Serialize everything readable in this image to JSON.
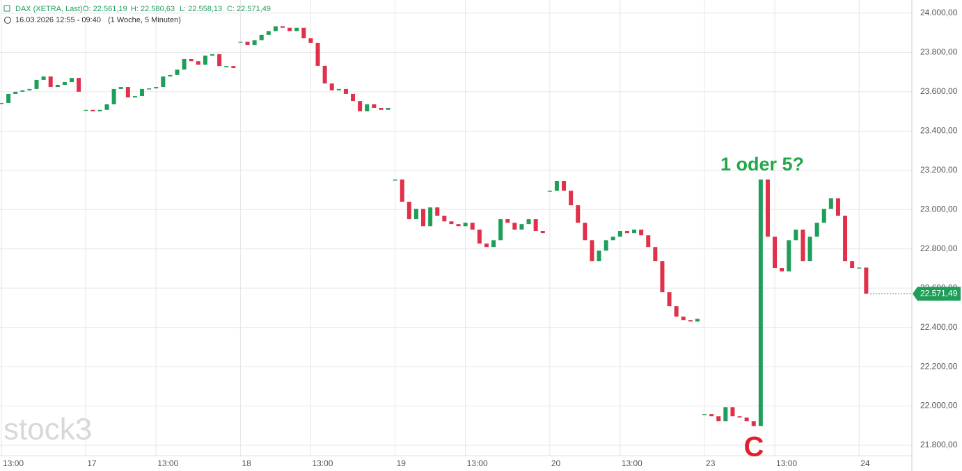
{
  "chart_data": {
    "type": "candlestick",
    "header": {
      "symbol": "DAX (XETRA, Last)",
      "open": "O: 22.561,19",
      "high": "H: 22.580,63",
      "low": "L: 22.558,13",
      "close": "C: 22.571,49",
      "range": "16.03.2026 12:55 - 09:40",
      "interval": "(1 Woche, 5 Minuten)"
    },
    "annotations": [
      {
        "text": "1 oder 5?",
        "color": "#22a84a"
      },
      {
        "text": "C",
        "color": "#e0202a"
      }
    ],
    "watermark": "stock3",
    "color_up": "#1f9e5a",
    "color_down": "#e0304a",
    "series": [
      {
        "x": [
          5,
          5.5,
          6,
          6.5,
          7,
          7.5,
          8,
          8.5,
          9,
          9.5,
          10,
          10.5
        ],
        "values": [
          23543,
          23589,
          23600,
          23607,
          23614,
          23660,
          23678,
          23624,
          23635,
          23649,
          23670,
          23600
        ]
      },
      {
        "x": [
          11,
          11.5,
          12,
          12.5,
          13,
          13.5,
          14,
          14.5,
          15,
          15.5,
          16,
          16.5,
          17,
          17.5,
          18,
          18.5,
          19,
          19.5,
          20,
          20.5,
          21,
          21.5
        ],
        "values": [
          23508,
          23500,
          23508,
          23536,
          23614,
          23624,
          23571,
          23578,
          23614,
          23617,
          23624,
          23678,
          23685,
          23713,
          23766,
          23755,
          23738,
          23784,
          23791,
          23730,
          23730,
          23720
        ]
      },
      {
        "x": [
          22,
          22.5,
          23,
          23.5,
          24,
          24.5,
          25,
          25.5,
          26,
          26.5,
          27,
          27.5,
          28,
          28.5,
          29,
          29.5,
          30,
          30.5,
          31,
          31.5,
          32,
          32.5
        ],
        "values": [
          23855,
          23837,
          23862,
          23890,
          23908,
          23933,
          23926,
          23908,
          23926,
          23872,
          23848,
          23731,
          23642,
          23607,
          23614,
          23589,
          23553,
          23500,
          23536,
          23518,
          23508,
          23518
        ]
      },
      {
        "x": [
          33,
          33.5,
          34,
          34.5,
          35,
          35.5,
          36,
          36.5,
          37,
          37.5,
          38,
          38.5,
          39,
          39.5,
          40,
          40.5,
          41,
          41.5,
          42,
          42.5,
          43,
          43.5
        ],
        "values": [
          23153,
          23040,
          22951,
          23004,
          22915,
          23011,
          22969,
          22940,
          22926,
          22915,
          22933,
          22898,
          22827,
          22809,
          22844,
          22951,
          22933,
          22898,
          22926,
          22951,
          22891,
          22880
        ]
      },
      {
        "x": [
          44,
          44.5,
          45,
          45.5,
          46,
          46.5,
          47,
          47.5,
          48,
          48.5,
          49,
          49.5,
          50,
          50.5,
          51,
          51.5,
          52,
          52.5,
          53,
          53.5,
          54,
          54.5
        ],
        "values": [
          23096,
          23146,
          23096,
          23022,
          22933,
          22844,
          22738,
          22791,
          22844,
          22862,
          22891,
          22880,
          22898,
          22869,
          22809,
          22738,
          22579,
          22508,
          22455,
          22437,
          22430,
          22444
        ]
      },
      {
        "x": [
          55,
          55.5,
          56,
          56.5,
          57,
          57.5,
          58,
          58.5,
          59,
          59.5,
          60,
          60.5,
          61,
          61.5,
          62,
          62.5,
          63,
          63.5,
          64,
          64.5,
          65,
          65.5
        ],
        "values": [
          21959,
          21948,
          21923,
          21994,
          21948,
          21941,
          21923,
          21898,
          23153,
          22862,
          22703,
          22685,
          22844,
          22898,
          22738,
          22862,
          22933,
          23004,
          23057,
          22969,
          22738,
          22703
        ]
      },
      {
        "x": [
          66,
          66.5
        ],
        "values": [
          22705,
          22571.49
        ]
      }
    ],
    "last_label": {
      "value": 22571.49,
      "label": "22.571,49"
    },
    "xlim": [
      4.9,
      69.75
    ],
    "xticks": [
      {
        "value": 5,
        "label": "13:00"
      },
      {
        "value": 11,
        "label": "17"
      },
      {
        "value": 16,
        "label": "13:00"
      },
      {
        "value": 22,
        "label": "18"
      },
      {
        "value": 27,
        "label": "13:00"
      },
      {
        "value": 33,
        "label": "19"
      },
      {
        "value": 38,
        "label": "13:00"
      },
      {
        "value": 44,
        "label": "20"
      },
      {
        "value": 49,
        "label": "13:00"
      },
      {
        "value": 55,
        "label": "23"
      },
      {
        "value": 60,
        "label": "13:00"
      },
      {
        "value": 66,
        "label": "24"
      }
    ],
    "ylim": [
      21747,
      24067
    ],
    "yticks": [
      {
        "value": 21800,
        "label": "21.800,00"
      },
      {
        "value": 22000,
        "label": "22.000,00"
      },
      {
        "value": 22200,
        "label": "22.200,00"
      },
      {
        "value": 22400,
        "label": "22.400,00"
      },
      {
        "value": 22600,
        "label": "22.600,00"
      },
      {
        "value": 22800,
        "label": "22.800,00"
      },
      {
        "value": 23000,
        "label": "23.000,00"
      },
      {
        "value": 23200,
        "label": "23.200,00"
      },
      {
        "value": 23400,
        "label": "23.400,00"
      },
      {
        "value": 23600,
        "label": "23.600,00"
      },
      {
        "value": 23800,
        "label": "23.800,00"
      },
      {
        "value": 24000,
        "label": "24.000,00"
      }
    ],
    "grid": true
  }
}
